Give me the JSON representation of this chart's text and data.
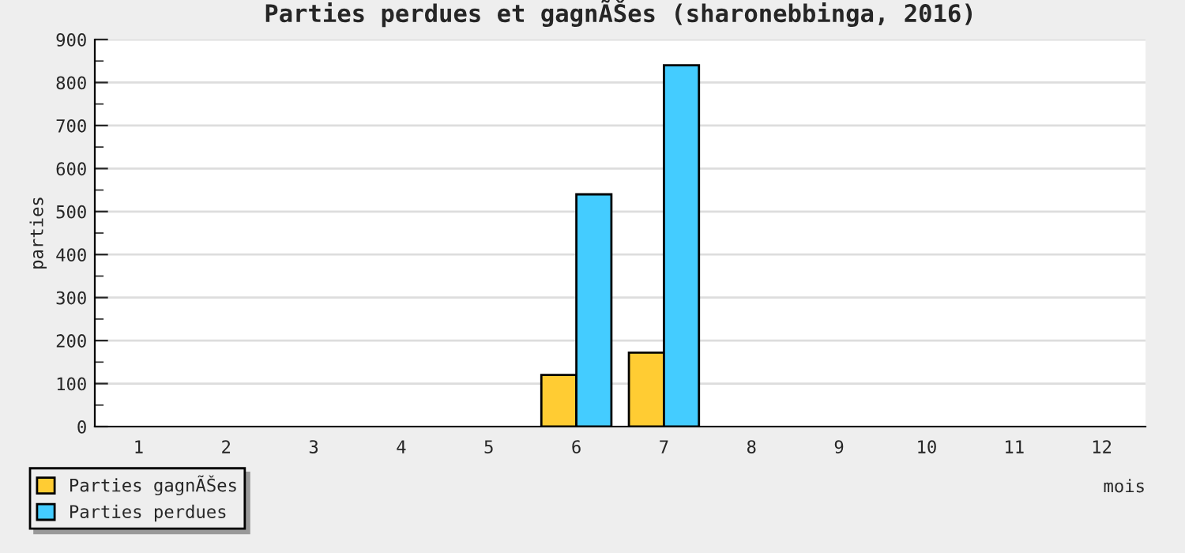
{
  "chart_data": {
    "type": "bar",
    "title": "Parties perdues et gagnÃŠes (sharonebbinga, 2016)",
    "xlabel": "mois",
    "ylabel": "parties",
    "categories": [
      "1",
      "2",
      "3",
      "4",
      "5",
      "6",
      "7",
      "8",
      "9",
      "10",
      "11",
      "12"
    ],
    "series": [
      {
        "name": "Parties gagnÃŠes",
        "color": "#ffcc33",
        "values": [
          0,
          0,
          0,
          0,
          0,
          120,
          172,
          0,
          0,
          0,
          0,
          0
        ]
      },
      {
        "name": "Parties perdues",
        "color": "#44ccff",
        "values": [
          0,
          0,
          0,
          0,
          0,
          540,
          840,
          0,
          0,
          0,
          0,
          0
        ]
      }
    ],
    "ylim": [
      0,
      900
    ],
    "yticks": [
      0,
      100,
      200,
      300,
      400,
      500,
      600,
      700,
      800,
      900
    ],
    "grid": "y",
    "legend": "bottom left"
  }
}
